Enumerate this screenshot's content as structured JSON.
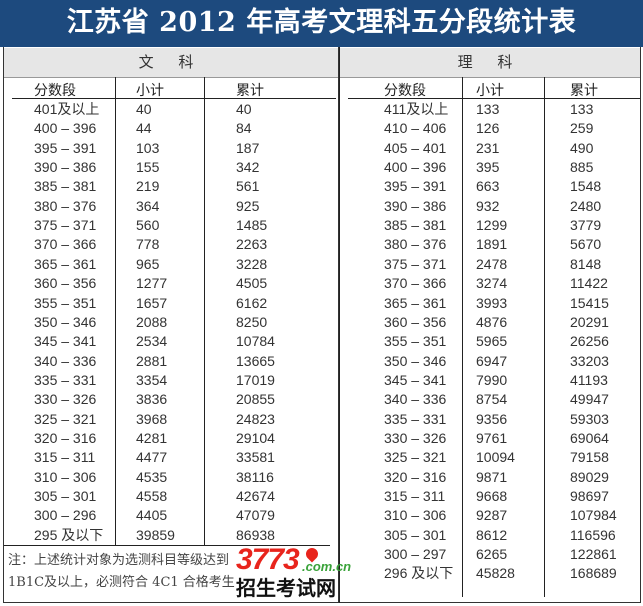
{
  "title": "江苏省 2012 年高考文理科五分段统计表",
  "colors": {
    "title_bg": "#1d4a7e",
    "section_bg": "#e6e6e6"
  },
  "wenke": {
    "label": "文 科",
    "headers": [
      "分数段",
      "小计",
      "累计"
    ],
    "rows": [
      [
        "401及以上",
        "40",
        "40"
      ],
      [
        "400 – 396",
        "44",
        "84"
      ],
      [
        "395 – 391",
        "103",
        "187"
      ],
      [
        "390 – 386",
        "155",
        "342"
      ],
      [
        "385 – 381",
        "219",
        "561"
      ],
      [
        "380 – 376",
        "364",
        "925"
      ],
      [
        "375 – 371",
        "560",
        "1485"
      ],
      [
        "370 – 366",
        "778",
        "2263"
      ],
      [
        "365 – 361",
        "965",
        "3228"
      ],
      [
        "360 – 356",
        "1277",
        "4505"
      ],
      [
        "355 – 351",
        "1657",
        "6162"
      ],
      [
        "350 – 346",
        "2088",
        "8250"
      ],
      [
        "345 – 341",
        "2534",
        "10784"
      ],
      [
        "340 – 336",
        "2881",
        "13665"
      ],
      [
        "335 – 331",
        "3354",
        "17019"
      ],
      [
        "330 – 326",
        "3836",
        "20855"
      ],
      [
        "325 – 321",
        "3968",
        "24823"
      ],
      [
        "320 – 316",
        "4281",
        "29104"
      ],
      [
        "315 – 311",
        "4477",
        "33581"
      ],
      [
        "310 – 306",
        "4535",
        "38116"
      ],
      [
        "305 – 301",
        "4558",
        "42674"
      ],
      [
        "300 – 296",
        "4405",
        "47079"
      ],
      [
        "295 及以下",
        "39859",
        "86938"
      ]
    ],
    "note_line1": "注：上述统计对象为选测科目等级达到",
    "note_line2": "1B1C及以上，必测符合 4C1 合格考生"
  },
  "like": {
    "label": "理 科",
    "headers": [
      "分数段",
      "小计",
      "累计"
    ],
    "rows": [
      [
        "411及以上",
        "133",
        "133"
      ],
      [
        "410 – 406",
        "126",
        "259"
      ],
      [
        "405 – 401",
        "231",
        "490"
      ],
      [
        "400 – 396",
        "395",
        "885"
      ],
      [
        "395 – 391",
        "663",
        "1548"
      ],
      [
        "390 – 386",
        "932",
        "2480"
      ],
      [
        "385 – 381",
        "1299",
        "3779"
      ],
      [
        "380 – 376",
        "1891",
        "5670"
      ],
      [
        "375 – 371",
        "2478",
        "8148"
      ],
      [
        "370 – 366",
        "3274",
        "11422"
      ],
      [
        "365 – 361",
        "3993",
        "15415"
      ],
      [
        "360 – 356",
        "4876",
        "20291"
      ],
      [
        "355 – 351",
        "5965",
        "26256"
      ],
      [
        "350 – 346",
        "6947",
        "33203"
      ],
      [
        "345 – 341",
        "7990",
        "41193"
      ],
      [
        "340 – 336",
        "8754",
        "49947"
      ],
      [
        "335 – 331",
        "9356",
        "59303"
      ],
      [
        "330 – 326",
        "9761",
        "69064"
      ],
      [
        "325 – 321",
        "10094",
        "79158"
      ],
      [
        "320 – 316",
        "9871",
        "89029"
      ],
      [
        "315 – 311",
        "9668",
        "98697"
      ],
      [
        "310 – 306",
        "9287",
        "107984"
      ],
      [
        "305 – 301",
        "8612",
        "116596"
      ],
      [
        "300 – 297",
        "6265",
        "122861"
      ],
      [
        "296 及以下",
        "45828",
        "168689"
      ]
    ]
  },
  "watermark": {
    "number": "3773",
    "domain": ".com.cn",
    "name": "招生考试网"
  }
}
